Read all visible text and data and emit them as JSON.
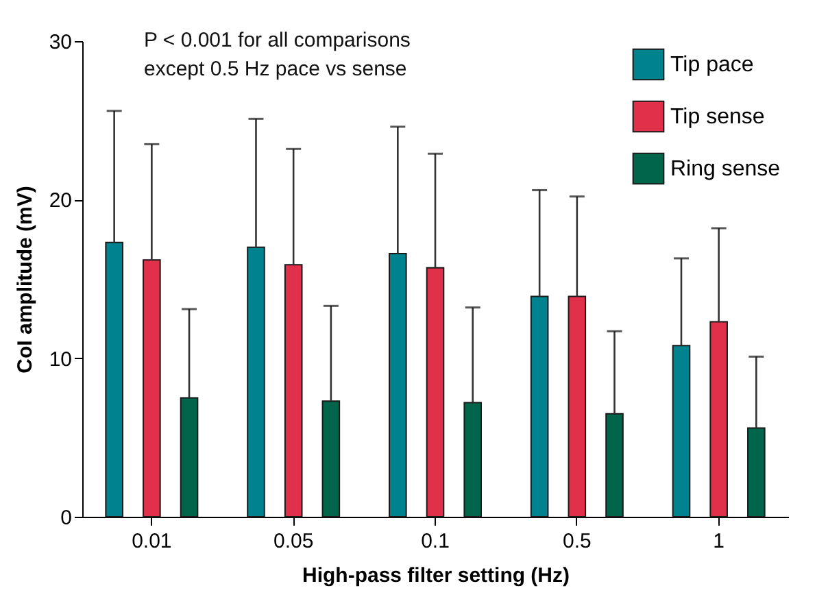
{
  "chart_data": {
    "type": "bar",
    "xlabel": "High-pass filter setting (Hz)",
    "ylabel": "CoI amplitude (mV)",
    "categories": [
      "0.01",
      "0.05",
      "0.1",
      "0.5",
      "1"
    ],
    "series": [
      {
        "name": "Tip pace",
        "color": "#00828f",
        "values": [
          17.3,
          17.0,
          16.6,
          13.9,
          10.8
        ],
        "errors": [
          [
            17.3,
            25.6
          ],
          [
            17.0,
            25.1
          ],
          [
            16.6,
            24.6
          ],
          [
            13.9,
            20.6
          ],
          [
            10.8,
            16.3
          ]
        ]
      },
      {
        "name": "Tip sense",
        "color": "#e0304a",
        "values": [
          16.2,
          15.9,
          15.7,
          13.9,
          12.3
        ],
        "errors": [
          [
            16.2,
            23.5
          ],
          [
            15.9,
            23.2
          ],
          [
            15.7,
            22.9
          ],
          [
            13.9,
            20.2
          ],
          [
            12.3,
            18.2
          ]
        ]
      },
      {
        "name": "Ring sense",
        "color": "#00654a",
        "values": [
          7.5,
          7.3,
          7.2,
          6.5,
          5.6
        ],
        "errors": [
          [
            7.5,
            13.1
          ],
          [
            7.3,
            13.3
          ],
          [
            7.2,
            13.2
          ],
          [
            6.5,
            11.7
          ],
          [
            5.6,
            10.1
          ]
        ]
      }
    ],
    "ylim": [
      0,
      30
    ],
    "yticks": [
      0,
      10,
      20,
      30
    ],
    "grid": false,
    "legend": "top right",
    "annotations": [
      "P < 0.001 for all comparisons\nexcept 0.5 Hz pace vs sense"
    ]
  }
}
